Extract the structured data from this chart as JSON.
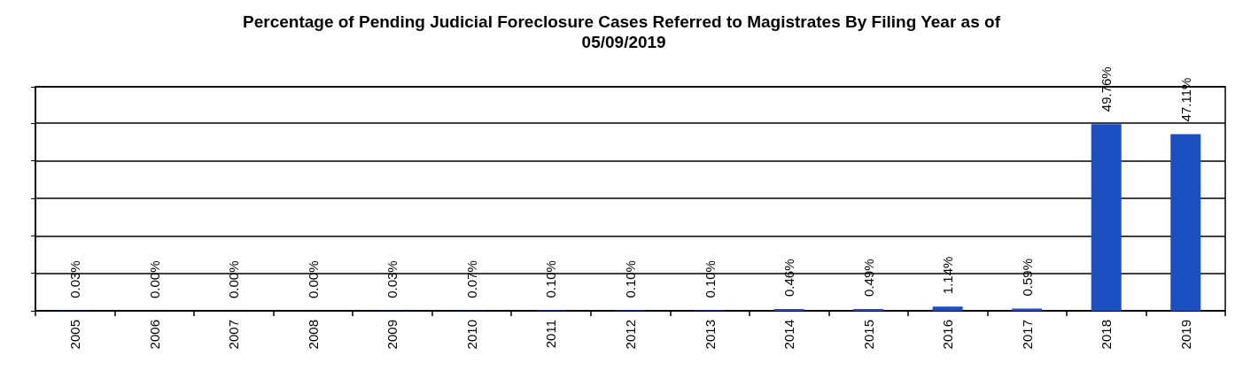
{
  "chart_data": {
    "type": "bar",
    "title": "Percentage of Pending Judicial Foreclosure Cases Referred to Magistrates By Filing Year as of 05/09/2019",
    "categories": [
      "2005",
      "2006",
      "2007",
      "2008",
      "2009",
      "2010",
      "2011",
      "2012",
      "2013",
      "2014",
      "2015",
      "2016",
      "2017",
      "2018",
      "2019"
    ],
    "values": [
      0.03,
      0.0,
      0.0,
      0.0,
      0.03,
      0.07,
      0.1,
      0.1,
      0.1,
      0.46,
      0.49,
      1.14,
      0.59,
      49.76,
      47.11
    ],
    "value_labels": [
      "0.03%",
      "0.00%",
      "0.00%",
      "0.00%",
      "0.03%",
      "0.07%",
      "0.10%",
      "0.10%",
      "0.10%",
      "0.46%",
      "0.49%",
      "1.14%",
      "0.59%",
      "49.76%",
      "47.11%"
    ],
    "color": "#1c4fc0",
    "tick_labels": "x",
    "grid": "y"
  }
}
